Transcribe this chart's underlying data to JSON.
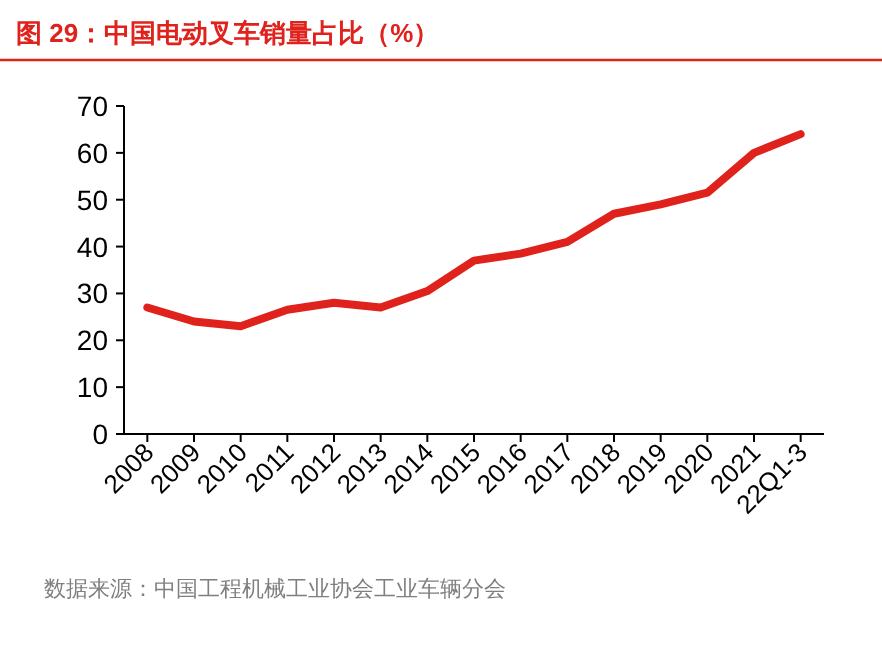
{
  "chart_data": {
    "type": "line",
    "title": "图 29：中国电动叉车销量占比（%）",
    "categories": [
      "2008",
      "2009",
      "2010",
      "2011",
      "2012",
      "2013",
      "2014",
      "2015",
      "2016",
      "2017",
      "2018",
      "2019",
      "2020",
      "2021",
      "22Q1-3"
    ],
    "series": [
      {
        "color": "#e0221c",
        "values": [
          27,
          24,
          23,
          26.5,
          28,
          27,
          30.5,
          37,
          38.5,
          41,
          47,
          49,
          51.5,
          60,
          64
        ]
      }
    ],
    "ylim": [
      0,
      70
    ],
    "yticks": [
      0,
      10,
      20,
      30,
      40,
      50,
      60,
      70
    ],
    "grid": false,
    "marker": "none",
    "line_style": "solid",
    "annotations": [
      "数据来源：中国工程机械工业协会工业车辆分会"
    ]
  }
}
